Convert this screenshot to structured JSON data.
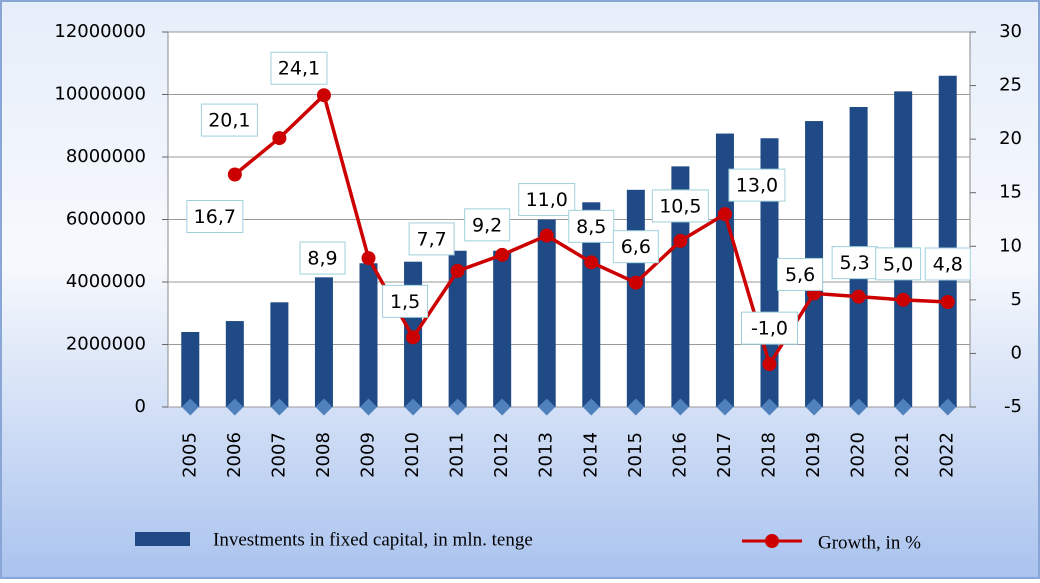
{
  "chart_data": {
    "type": "bar-line",
    "categories": [
      "2005",
      "2006",
      "2007",
      "2008",
      "2009",
      "2010",
      "2011",
      "2012",
      "2013",
      "2014",
      "2015",
      "2016",
      "2017",
      "2018",
      "2019",
      "2020",
      "2021",
      "2022"
    ],
    "series": [
      {
        "name": "Investments in fixed capital, in mln. tenge",
        "type": "bar",
        "color": "#1f4a85",
        "values": [
          2400000,
          2750000,
          3350000,
          4150000,
          4600000,
          4650000,
          5000000,
          5000000,
          6000000,
          6550000,
          6950000,
          7700000,
          8750000,
          8600000,
          9150000,
          9600000,
          10100000,
          10600000
        ]
      },
      {
        "name": "Growth, in %",
        "type": "line",
        "axis": "y2",
        "color": "#cc0000",
        "values": [
          null,
          16.7,
          20.1,
          24.1,
          8.9,
          1.5,
          7.7,
          9.2,
          11.0,
          8.5,
          6.6,
          10.5,
          13.0,
          -1.0,
          5.6,
          5.3,
          5.0,
          4.8
        ],
        "value_labels": [
          null,
          "16,7",
          "20,1",
          "24,1",
          "8,9",
          "1,5",
          "7,7",
          "9,2",
          "11,0",
          "8,5",
          "6,6",
          "10,5",
          "13,0",
          "-1,0",
          "5,6",
          "5,3",
          "5,0",
          "4,8"
        ]
      }
    ],
    "ylim": [
      0,
      12000000
    ],
    "yticks": [
      0,
      2000000,
      4000000,
      6000000,
      8000000,
      10000000,
      12000000
    ],
    "y2lim": [
      -5,
      30
    ],
    "y2ticks": [
      -5,
      0,
      5,
      10,
      15,
      20,
      25,
      30
    ],
    "grid": true,
    "legend": "bottom"
  }
}
